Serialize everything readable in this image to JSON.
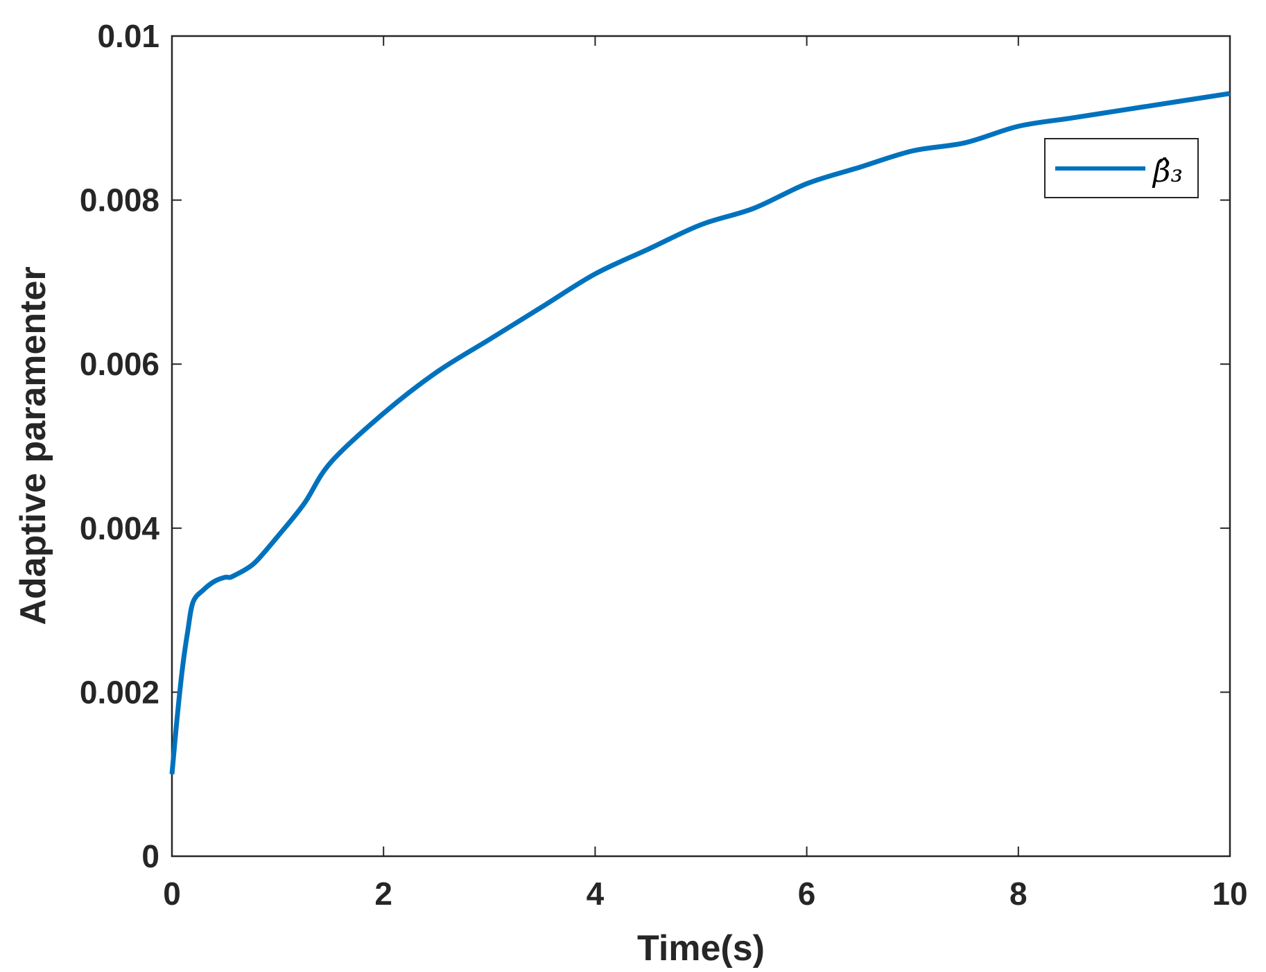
{
  "chart_data": {
    "type": "line",
    "title": "",
    "xlabel": "Time(s)",
    "ylabel": "Adaptive paramenter",
    "xlim": [
      0,
      10
    ],
    "ylim": [
      0,
      0.01
    ],
    "x_ticks": [
      "0",
      "2",
      "4",
      "6",
      "8",
      "10"
    ],
    "y_ticks": [
      "0",
      "0.002",
      "0.004",
      "0.006",
      "0.008",
      "0.01"
    ],
    "grid": false,
    "legend_position": "top-right",
    "series": [
      {
        "name": "β̂₃",
        "color": "#0072BD",
        "x": [
          0,
          0.05,
          0.1,
          0.15,
          0.2,
          0.3,
          0.4,
          0.5,
          0.55,
          0.6,
          0.7,
          0.8,
          1.0,
          1.25,
          1.5,
          2.0,
          2.5,
          3.0,
          3.5,
          4.0,
          4.5,
          5.0,
          5.5,
          6.0,
          6.5,
          7.0,
          7.5,
          8.0,
          8.5,
          9.0,
          9.5,
          10.0
        ],
        "y": [
          0.001,
          0.0017,
          0.0023,
          0.00275,
          0.0031,
          0.00325,
          0.00335,
          0.0034,
          0.0034,
          0.00343,
          0.0035,
          0.0036,
          0.0039,
          0.0043,
          0.0048,
          0.0054,
          0.0059,
          0.0063,
          0.0067,
          0.0071,
          0.0074,
          0.0077,
          0.0079,
          0.0082,
          0.0084,
          0.0086,
          0.0087,
          0.0089,
          0.009,
          0.0091,
          0.0092,
          0.0093
        ]
      }
    ]
  }
}
